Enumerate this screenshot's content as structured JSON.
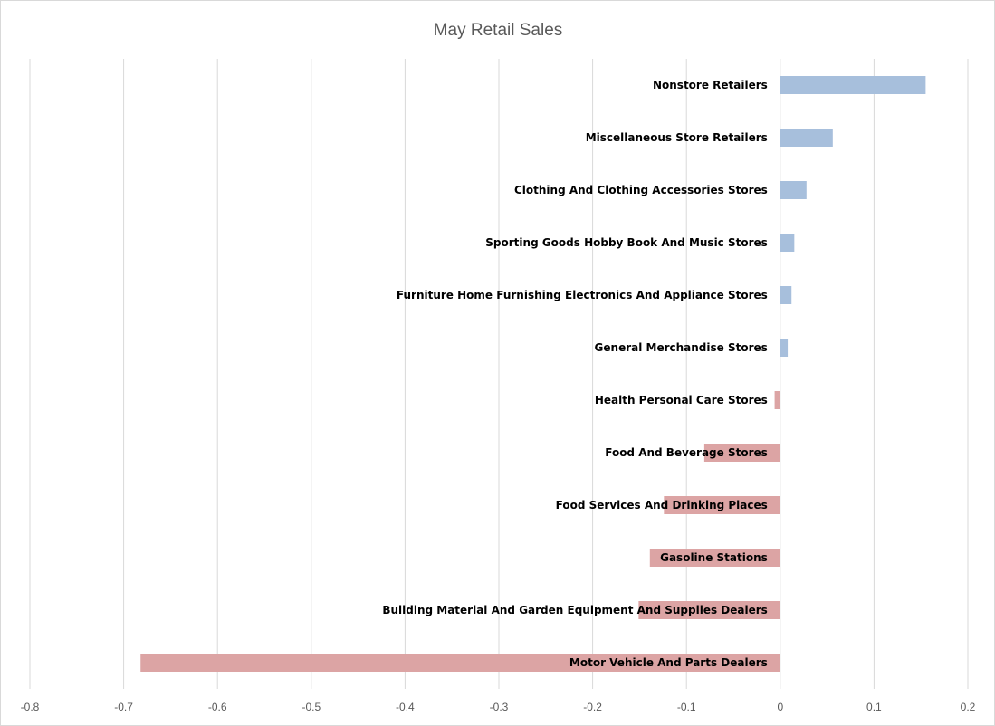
{
  "chart_data": {
    "type": "bar",
    "orientation": "horizontal",
    "title": "May Retail Sales",
    "xlim": [
      -0.8,
      0.2
    ],
    "x_ticks": [
      "-0.8",
      "-0.7",
      "-0.6",
      "-0.5",
      "-0.4",
      "-0.3",
      "-0.2",
      "-0.1",
      "0",
      "0.1",
      "0.2"
    ],
    "grid": "vertical",
    "colors": {
      "positive": "#a7bfdc",
      "negative": "#dca4a4",
      "grid": "#d9d9d9"
    },
    "categories": [
      "Nonstore Retailers",
      "Miscellaneous Store Retailers",
      "Clothing And Clothing Accessories Stores",
      "Sporting Goods Hobby Book And Music Stores",
      "Furniture Home Furnishing Electronics And Appliance Stores",
      "General Merchandise Stores",
      "Health Personal Care Stores",
      "Food And Beverage Stores",
      "Food Services And Drinking Places",
      "Gasoline Stations",
      "Building Material And Garden Equipment And Supplies Dealers",
      "Motor Vehicle And Parts Dealers"
    ],
    "values": [
      0.155,
      0.056,
      0.028,
      0.015,
      0.012,
      0.008,
      -0.006,
      -0.081,
      -0.124,
      -0.139,
      -0.151,
      -0.682
    ]
  }
}
